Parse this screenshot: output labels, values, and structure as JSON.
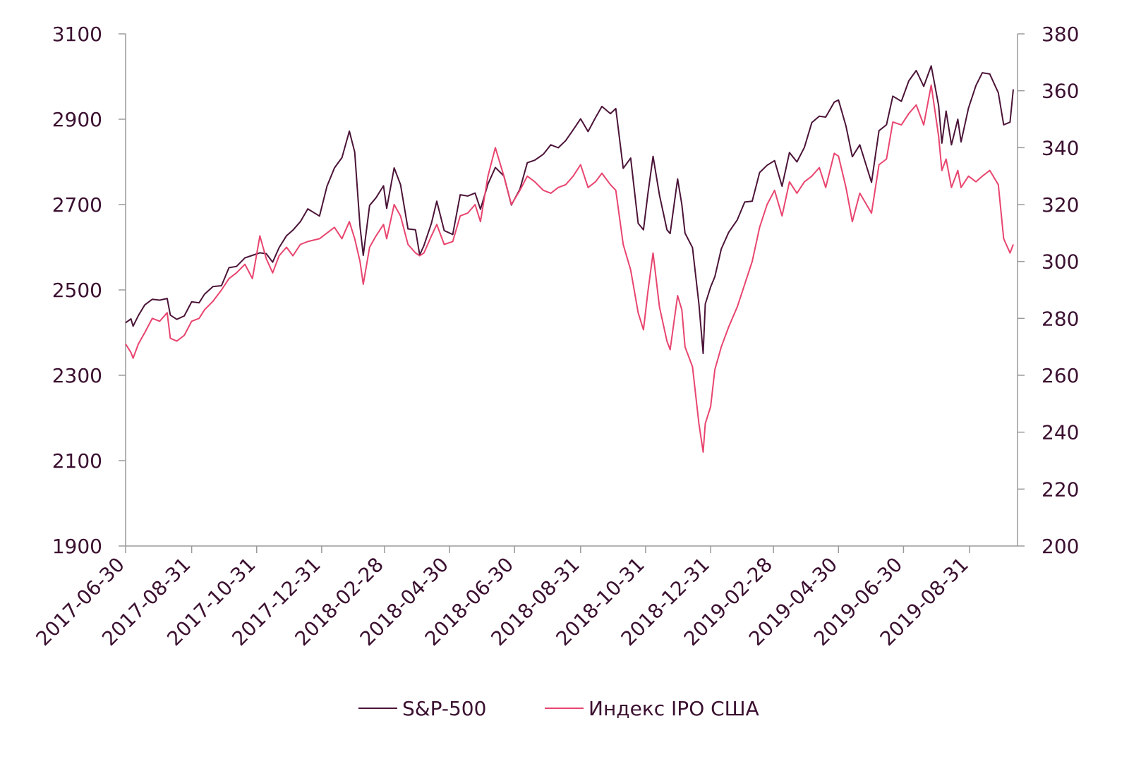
{
  "colors": {
    "primary": "#4b1438",
    "secondary": "#e8456f",
    "axis": "#9a9a9a",
    "text": "#3b1030"
  },
  "chart_data": {
    "type": "line",
    "title": "",
    "xlabel": "",
    "ylabel": "",
    "x_ticks": [
      "2017-06-30",
      "2017-08-31",
      "2017-10-31",
      "2017-12-31",
      "2018-02-28",
      "2018-04-30",
      "2018-06-30",
      "2018-08-31",
      "2018-10-31",
      "2018-12-31",
      "2019-02-28",
      "2019-04-30",
      "2019-06-30",
      "2019-08-31"
    ],
    "x_range": [
      "2017-06-30",
      "2019-10-15"
    ],
    "y_left": {
      "range": [
        1900,
        3100
      ],
      "ticks": [
        "1900",
        "2100",
        "2300",
        "2500",
        "2700",
        "2900",
        "3100"
      ]
    },
    "y_right": {
      "range": [
        200,
        380
      ],
      "ticks": [
        "200",
        "220",
        "240",
        "260",
        "280",
        "300",
        "320",
        "340",
        "360",
        "380"
      ]
    },
    "grid": false,
    "legend_position": "bottom",
    "series": [
      {
        "name": "S&P-500",
        "axis": "left",
        "color": "#4b1438",
        "points": [
          [
            "2017-06-30",
            2423
          ],
          [
            "2017-07-05",
            2432
          ],
          [
            "2017-07-07",
            2415
          ],
          [
            "2017-07-12",
            2440
          ],
          [
            "2017-07-18",
            2465
          ],
          [
            "2017-07-25",
            2478
          ],
          [
            "2017-08-01",
            2476
          ],
          [
            "2017-08-08",
            2480
          ],
          [
            "2017-08-11",
            2441
          ],
          [
            "2017-08-17",
            2431
          ],
          [
            "2017-08-24",
            2439
          ],
          [
            "2017-08-31",
            2472
          ],
          [
            "2017-09-07",
            2470
          ],
          [
            "2017-09-12",
            2490
          ],
          [
            "2017-09-20",
            2508
          ],
          [
            "2017-09-28",
            2510
          ],
          [
            "2017-10-05",
            2552
          ],
          [
            "2017-10-12",
            2555
          ],
          [
            "2017-10-20",
            2575
          ],
          [
            "2017-10-27",
            2581
          ],
          [
            "2017-11-03",
            2587
          ],
          [
            "2017-11-09",
            2585
          ],
          [
            "2017-11-15",
            2565
          ],
          [
            "2017-11-21",
            2599
          ],
          [
            "2017-11-28",
            2627
          ],
          [
            "2017-12-04",
            2640
          ],
          [
            "2017-12-11",
            2660
          ],
          [
            "2017-12-18",
            2690
          ],
          [
            "2017-12-29",
            2673
          ],
          [
            "2018-01-05",
            2743
          ],
          [
            "2018-01-12",
            2786
          ],
          [
            "2018-01-19",
            2810
          ],
          [
            "2018-01-26",
            2872
          ],
          [
            "2018-01-31",
            2823
          ],
          [
            "2018-02-05",
            2649
          ],
          [
            "2018-02-08",
            2581
          ],
          [
            "2018-02-14",
            2698
          ],
          [
            "2018-02-20",
            2716
          ],
          [
            "2018-02-27",
            2744
          ],
          [
            "2018-03-02",
            2691
          ],
          [
            "2018-03-09",
            2786
          ],
          [
            "2018-03-15",
            2747
          ],
          [
            "2018-03-22",
            2643
          ],
          [
            "2018-03-29",
            2641
          ],
          [
            "2018-04-02",
            2582
          ],
          [
            "2018-04-06",
            2604
          ],
          [
            "2018-04-13",
            2656
          ],
          [
            "2018-04-18",
            2708
          ],
          [
            "2018-04-25",
            2639
          ],
          [
            "2018-05-03",
            2630
          ],
          [
            "2018-05-10",
            2723
          ],
          [
            "2018-05-17",
            2720
          ],
          [
            "2018-05-24",
            2727
          ],
          [
            "2018-05-29",
            2689
          ],
          [
            "2018-06-05",
            2748
          ],
          [
            "2018-06-12",
            2787
          ],
          [
            "2018-06-20",
            2767
          ],
          [
            "2018-06-27",
            2699
          ],
          [
            "2018-07-05",
            2736
          ],
          [
            "2018-07-12",
            2798
          ],
          [
            "2018-07-19",
            2804
          ],
          [
            "2018-07-27",
            2818
          ],
          [
            "2018-08-03",
            2840
          ],
          [
            "2018-08-10",
            2833
          ],
          [
            "2018-08-17",
            2850
          ],
          [
            "2018-08-24",
            2875
          ],
          [
            "2018-08-31",
            2901
          ],
          [
            "2018-09-07",
            2871
          ],
          [
            "2018-09-14",
            2904
          ],
          [
            "2018-09-20",
            2930
          ],
          [
            "2018-09-28",
            2913
          ],
          [
            "2018-10-03",
            2925
          ],
          [
            "2018-10-10",
            2785
          ],
          [
            "2018-10-17",
            2809
          ],
          [
            "2018-10-24",
            2656
          ],
          [
            "2018-10-29",
            2641
          ],
          [
            "2018-11-02",
            2723
          ],
          [
            "2018-11-07",
            2813
          ],
          [
            "2018-11-13",
            2722
          ],
          [
            "2018-11-20",
            2641
          ],
          [
            "2018-11-23",
            2632
          ],
          [
            "2018-11-30",
            2760
          ],
          [
            "2018-12-04",
            2700
          ],
          [
            "2018-12-07",
            2633
          ],
          [
            "2018-12-14",
            2599
          ],
          [
            "2018-12-20",
            2467
          ],
          [
            "2018-12-24",
            2351
          ],
          [
            "2018-12-26",
            2467
          ],
          [
            "2018-12-31",
            2507
          ],
          [
            "2019-01-04",
            2531
          ],
          [
            "2019-01-10",
            2596
          ],
          [
            "2019-01-17",
            2635
          ],
          [
            "2019-01-25",
            2664
          ],
          [
            "2019-02-01",
            2706
          ],
          [
            "2019-02-08",
            2708
          ],
          [
            "2019-02-15",
            2775
          ],
          [
            "2019-02-22",
            2792
          ],
          [
            "2019-03-01",
            2803
          ],
          [
            "2019-03-08",
            2743
          ],
          [
            "2019-03-15",
            2822
          ],
          [
            "2019-03-22",
            2800
          ],
          [
            "2019-03-29",
            2834
          ],
          [
            "2019-04-05",
            2892
          ],
          [
            "2019-04-12",
            2907
          ],
          [
            "2019-04-18",
            2905
          ],
          [
            "2019-04-26",
            2940
          ],
          [
            "2019-04-30",
            2945
          ],
          [
            "2019-05-07",
            2884
          ],
          [
            "2019-05-13",
            2812
          ],
          [
            "2019-05-20",
            2840
          ],
          [
            "2019-05-31",
            2752
          ],
          [
            "2019-06-07",
            2873
          ],
          [
            "2019-06-14",
            2887
          ],
          [
            "2019-06-20",
            2954
          ],
          [
            "2019-06-28",
            2942
          ],
          [
            "2019-07-05",
            2990
          ],
          [
            "2019-07-12",
            3014
          ],
          [
            "2019-07-19",
            2977
          ],
          [
            "2019-07-26",
            3025
          ],
          [
            "2019-08-02",
            2932
          ],
          [
            "2019-08-05",
            2844
          ],
          [
            "2019-08-09",
            2919
          ],
          [
            "2019-08-14",
            2840
          ],
          [
            "2019-08-20",
            2900
          ],
          [
            "2019-08-23",
            2847
          ],
          [
            "2019-08-30",
            2926
          ],
          [
            "2019-09-06",
            2979
          ],
          [
            "2019-09-12",
            3009
          ],
          [
            "2019-09-19",
            3006
          ],
          [
            "2019-09-27",
            2962
          ],
          [
            "2019-10-02",
            2887
          ],
          [
            "2019-10-08",
            2893
          ],
          [
            "2019-10-11",
            2970
          ]
        ]
      },
      {
        "name": "Индекс IPO США",
        "axis": "right",
        "color": "#e8456f",
        "points": [
          [
            "2017-06-30",
            271
          ],
          [
            "2017-07-05",
            268
          ],
          [
            "2017-07-07",
            266
          ],
          [
            "2017-07-12",
            271
          ],
          [
            "2017-07-18",
            275
          ],
          [
            "2017-07-25",
            280
          ],
          [
            "2017-08-01",
            279
          ],
          [
            "2017-08-08",
            282
          ],
          [
            "2017-08-11",
            273
          ],
          [
            "2017-08-17",
            272
          ],
          [
            "2017-08-24",
            274
          ],
          [
            "2017-08-31",
            279
          ],
          [
            "2017-09-07",
            280
          ],
          [
            "2017-09-12",
            283
          ],
          [
            "2017-09-20",
            286
          ],
          [
            "2017-09-28",
            290
          ],
          [
            "2017-10-05",
            294
          ],
          [
            "2017-10-12",
            296
          ],
          [
            "2017-10-20",
            299
          ],
          [
            "2017-10-27",
            294
          ],
          [
            "2017-11-03",
            309
          ],
          [
            "2017-11-09",
            301
          ],
          [
            "2017-11-15",
            296
          ],
          [
            "2017-11-21",
            302
          ],
          [
            "2017-11-28",
            305
          ],
          [
            "2017-12-04",
            302
          ],
          [
            "2017-12-11",
            306
          ],
          [
            "2017-12-18",
            307
          ],
          [
            "2017-12-29",
            308
          ],
          [
            "2018-01-05",
            310
          ],
          [
            "2018-01-12",
            312
          ],
          [
            "2018-01-19",
            308
          ],
          [
            "2018-01-26",
            314
          ],
          [
            "2018-01-31",
            308
          ],
          [
            "2018-02-05",
            300
          ],
          [
            "2018-02-08",
            292
          ],
          [
            "2018-02-14",
            305
          ],
          [
            "2018-02-20",
            309
          ],
          [
            "2018-02-27",
            313
          ],
          [
            "2018-03-02",
            308
          ],
          [
            "2018-03-09",
            320
          ],
          [
            "2018-03-15",
            316
          ],
          [
            "2018-03-22",
            306
          ],
          [
            "2018-03-29",
            303
          ],
          [
            "2018-04-02",
            302
          ],
          [
            "2018-04-06",
            303
          ],
          [
            "2018-04-13",
            309
          ],
          [
            "2018-04-18",
            313
          ],
          [
            "2018-04-25",
            306
          ],
          [
            "2018-05-03",
            307
          ],
          [
            "2018-05-10",
            316
          ],
          [
            "2018-05-17",
            317
          ],
          [
            "2018-05-24",
            320
          ],
          [
            "2018-05-29",
            314
          ],
          [
            "2018-06-05",
            330
          ],
          [
            "2018-06-12",
            340
          ],
          [
            "2018-06-20",
            330
          ],
          [
            "2018-06-27",
            320
          ],
          [
            "2018-07-05",
            325
          ],
          [
            "2018-07-12",
            330
          ],
          [
            "2018-07-19",
            328
          ],
          [
            "2018-07-27",
            325
          ],
          [
            "2018-08-03",
            324
          ],
          [
            "2018-08-10",
            326
          ],
          [
            "2018-08-17",
            327
          ],
          [
            "2018-08-24",
            330
          ],
          [
            "2018-08-31",
            334
          ],
          [
            "2018-09-07",
            326
          ],
          [
            "2018-09-14",
            328
          ],
          [
            "2018-09-20",
            331
          ],
          [
            "2018-09-28",
            327
          ],
          [
            "2018-10-03",
            325
          ],
          [
            "2018-10-10",
            306
          ],
          [
            "2018-10-17",
            297
          ],
          [
            "2018-10-24",
            282
          ],
          [
            "2018-10-29",
            276
          ],
          [
            "2018-11-02",
            289
          ],
          [
            "2018-11-07",
            303
          ],
          [
            "2018-11-13",
            284
          ],
          [
            "2018-11-20",
            272
          ],
          [
            "2018-11-23",
            269
          ],
          [
            "2018-11-30",
            288
          ],
          [
            "2018-12-04",
            283
          ],
          [
            "2018-12-07",
            270
          ],
          [
            "2018-12-14",
            263
          ],
          [
            "2018-12-20",
            243
          ],
          [
            "2018-12-24",
            233
          ],
          [
            "2018-12-26",
            243
          ],
          [
            "2018-12-31",
            249
          ],
          [
            "2019-01-04",
            262
          ],
          [
            "2019-01-10",
            270
          ],
          [
            "2019-01-17",
            277
          ],
          [
            "2019-01-25",
            284
          ],
          [
            "2019-02-01",
            292
          ],
          [
            "2019-02-08",
            300
          ],
          [
            "2019-02-15",
            312
          ],
          [
            "2019-02-22",
            320
          ],
          [
            "2019-03-01",
            325
          ],
          [
            "2019-03-08",
            316
          ],
          [
            "2019-03-15",
            328
          ],
          [
            "2019-03-22",
            324
          ],
          [
            "2019-03-29",
            328
          ],
          [
            "2019-04-05",
            330
          ],
          [
            "2019-04-12",
            333
          ],
          [
            "2019-04-18",
            326
          ],
          [
            "2019-04-26",
            338
          ],
          [
            "2019-04-30",
            337
          ],
          [
            "2019-05-07",
            326
          ],
          [
            "2019-05-13",
            314
          ],
          [
            "2019-05-20",
            324
          ],
          [
            "2019-05-31",
            317
          ],
          [
            "2019-06-07",
            334
          ],
          [
            "2019-06-14",
            336
          ],
          [
            "2019-06-20",
            349
          ],
          [
            "2019-06-28",
            348
          ],
          [
            "2019-07-05",
            352
          ],
          [
            "2019-07-12",
            355
          ],
          [
            "2019-07-19",
            348
          ],
          [
            "2019-07-26",
            362
          ],
          [
            "2019-08-02",
            344
          ],
          [
            "2019-08-05",
            332
          ],
          [
            "2019-08-09",
            336
          ],
          [
            "2019-08-14",
            326
          ],
          [
            "2019-08-20",
            332
          ],
          [
            "2019-08-23",
            326
          ],
          [
            "2019-08-30",
            330
          ],
          [
            "2019-09-06",
            328
          ],
          [
            "2019-09-12",
            330
          ],
          [
            "2019-09-19",
            332
          ],
          [
            "2019-09-27",
            327
          ],
          [
            "2019-10-02",
            308
          ],
          [
            "2019-10-08",
            303
          ],
          [
            "2019-10-11",
            306
          ]
        ]
      }
    ]
  }
}
